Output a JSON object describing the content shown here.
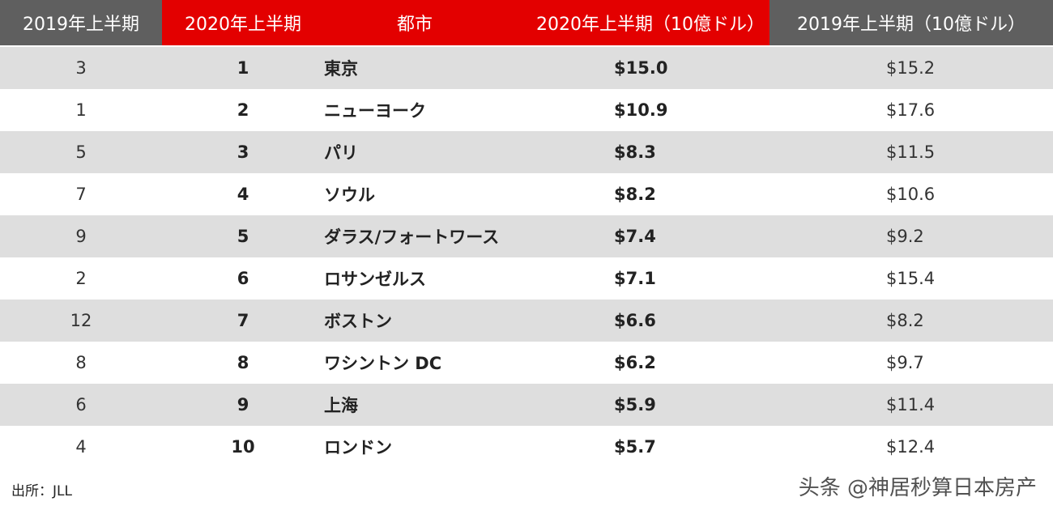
{
  "header": {
    "col_2019_rank": "2019年上半期",
    "col_2020_rank": "2020年上半期",
    "col_city": "都市",
    "col_2020_amount": "2020年上半期（10億ドル）",
    "col_2019_amount": "2019年上半期（10億ドル）"
  },
  "rows": [
    {
      "rank2019": "3",
      "rank2020": "1",
      "city": "東京",
      "amount2020": "$15.0",
      "amount2019": "$15.2"
    },
    {
      "rank2019": "1",
      "rank2020": "2",
      "city": "ニューヨーク",
      "amount2020": "$10.9",
      "amount2019": "$17.6"
    },
    {
      "rank2019": "5",
      "rank2020": "3",
      "city": "パリ",
      "amount2020": "$8.3",
      "amount2019": "$11.5"
    },
    {
      "rank2019": "7",
      "rank2020": "4",
      "city": "ソウル",
      "amount2020": "$8.2",
      "amount2019": "$10.6"
    },
    {
      "rank2019": "9",
      "rank2020": "5",
      "city": "ダラス/フォートワース",
      "amount2020": "$7.4",
      "amount2019": "$9.2"
    },
    {
      "rank2019": "2",
      "rank2020": "6",
      "city": "ロサンゼルス",
      "amount2020": "$7.1",
      "amount2019": "$15.4"
    },
    {
      "rank2019": "12",
      "rank2020": "7",
      "city": "ボストン",
      "amount2020": "$6.6",
      "amount2019": "$8.2"
    },
    {
      "rank2019": "8",
      "rank2020": "8",
      "city": "ワシントン DC",
      "amount2020": "$6.2",
      "amount2019": "$9.7"
    },
    {
      "rank2019": "6",
      "rank2020": "9",
      "city": "上海",
      "amount2020": "$5.9",
      "amount2019": "$11.4"
    },
    {
      "rank2019": "4",
      "rank2020": "10",
      "city": "ロンドン",
      "amount2020": "$5.7",
      "amount2019": "$12.4"
    }
  ],
  "source": "出所：JLL",
  "watermark": "头条 @神居秒算日本房产",
  "colors": {
    "header_gray": "#5f5f5f",
    "header_red": "#e30000",
    "row_shade": "#dedede"
  }
}
